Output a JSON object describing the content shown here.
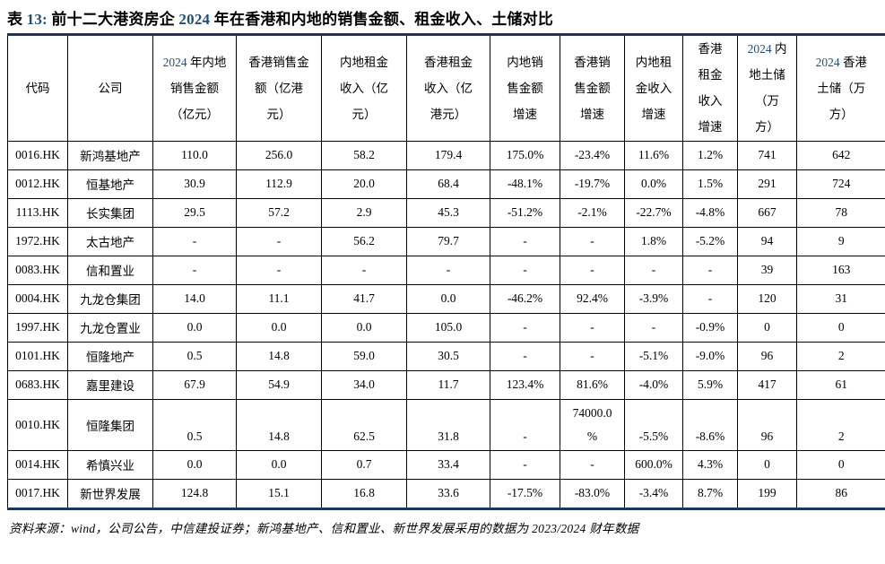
{
  "colors": {
    "accent": "#1F4E79",
    "rule": "#17375E"
  },
  "title": "表 13: 前十二大港资房企 2024 年在香港和内地的销售金额、租金收入、土储对比",
  "table": {
    "columns": [
      {
        "label": "代码"
      },
      {
        "label": "公司"
      },
      {
        "label": "2024 年内地\n销售金额\n（亿元）"
      },
      {
        "label": "香港销售金\n额（亿港\n元）"
      },
      {
        "label": "内地租金\n收入（亿\n元）"
      },
      {
        "label": "香港租金\n收入（亿\n港元）"
      },
      {
        "label": "内地销\n售金额\n增速"
      },
      {
        "label": "香港销\n售金额\n增速"
      },
      {
        "label": "内地租\n金收入\n增速"
      },
      {
        "label": "香港\n租金\n收入\n增速"
      },
      {
        "label": "2024 内\n地土储\n（万\n方）"
      },
      {
        "label": "2024 香港\n土储（万\n方）"
      }
    ],
    "rows": [
      [
        "0016.HK",
        "新鸿基地产",
        "110.0",
        "256.0",
        "58.2",
        "179.4",
        "175.0%",
        "-23.4%",
        "11.6%",
        "1.2%",
        "741",
        "642"
      ],
      [
        "0012.HK",
        "恒基地产",
        "30.9",
        "112.9",
        "20.0",
        "68.4",
        "-48.1%",
        "-19.7%",
        "0.0%",
        "1.5%",
        "291",
        "724"
      ],
      [
        "1113.HK",
        "长实集团",
        "29.5",
        "57.2",
        "2.9",
        "45.3",
        "-51.2%",
        "-2.1%",
        "-22.7%",
        "-4.8%",
        "667",
        "78"
      ],
      [
        "1972.HK",
        "太古地产",
        "-",
        "-",
        "56.2",
        "79.7",
        "-",
        "-",
        "1.8%",
        "-5.2%",
        "94",
        "9"
      ],
      [
        "0083.HK",
        "信和置业",
        "-",
        "-",
        "-",
        "-",
        "-",
        "-",
        "-",
        "-",
        "39",
        "163"
      ],
      [
        "0004.HK",
        "九龙仓集团",
        "14.0",
        "11.1",
        "41.7",
        "0.0",
        "-46.2%",
        "92.4%",
        "-3.9%",
        "-",
        "120",
        "31"
      ],
      [
        "1997.HK",
        "九龙仓置业",
        "0.0",
        "0.0",
        "0.0",
        "105.0",
        "-",
        "-",
        "-",
        "-0.9%",
        "0",
        "0"
      ],
      [
        "0101.HK",
        "恒隆地产",
        "0.5",
        "14.8",
        "59.0",
        "30.5",
        "-",
        "-",
        "-5.1%",
        "-9.0%",
        "96",
        "2"
      ],
      [
        "0683.HK",
        "嘉里建设",
        "67.9",
        "54.9",
        "34.0",
        "11.7",
        "123.4%",
        "81.6%",
        "-4.0%",
        "5.9%",
        "417",
        "61"
      ],
      [
        "0010.HK",
        "恒隆集团",
        "0.5",
        "14.8",
        "62.5",
        "31.8",
        "-",
        "74000.0\n%",
        "-5.5%",
        "-8.6%",
        "96",
        "2"
      ],
      [
        "0014.HK",
        "希慎兴业",
        "0.0",
        "0.0",
        "0.7",
        "33.4",
        "-",
        "-",
        "600.0%",
        "4.3%",
        "0",
        "0"
      ],
      [
        "0017.HK",
        "新世界发展",
        "124.8",
        "15.1",
        "16.8",
        "33.6",
        "-17.5%",
        "-83.0%",
        "-3.4%",
        "8.7%",
        "199",
        "86"
      ]
    ]
  },
  "footer": {
    "source": "资料来源：wind，公司公告，中信建投证券；新鸿基地产、信和置业、新世界发展采用的数据为 2023/2024 财年数据"
  }
}
